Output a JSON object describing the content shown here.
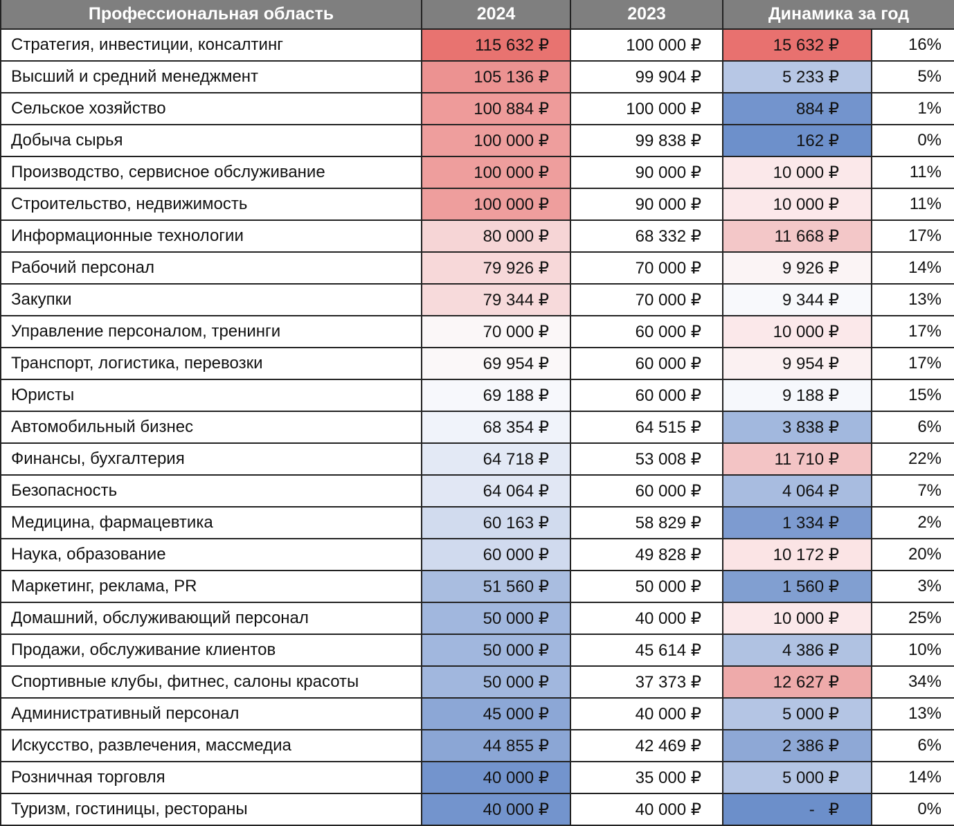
{
  "table": {
    "header": [
      "Профессиональная область",
      "2024",
      "2023",
      "Динамика за год"
    ],
    "rows": [
      [
        "Стратегия, инвестиции, консалтинг",
        "115 632 ₽",
        "100 000 ₽",
        "15 632 ₽",
        "16%"
      ],
      [
        "Высший и средний менеджмент",
        "105 136 ₽",
        "99 904 ₽",
        "5 233 ₽",
        "5%"
      ],
      [
        "Сельское хозяйство",
        "100 884 ₽",
        "100 000 ₽",
        "884 ₽",
        "1%"
      ],
      [
        "Добыча сырья",
        "100 000 ₽",
        "99 838 ₽",
        "162 ₽",
        "0%"
      ],
      [
        "Производство, сервисное обслуживание",
        "100 000 ₽",
        "90 000 ₽",
        "10 000 ₽",
        "11%"
      ],
      [
        "Строительство, недвижимость",
        "100 000 ₽",
        "90 000 ₽",
        "10 000 ₽",
        "11%"
      ],
      [
        "Информационные технологии",
        "80 000 ₽",
        "68 332 ₽",
        "11 668 ₽",
        "17%"
      ],
      [
        "Рабочий персонал",
        "79 926 ₽",
        "70 000 ₽",
        "9 926 ₽",
        "14%"
      ],
      [
        "Закупки",
        "79 344 ₽",
        "70 000 ₽",
        "9 344 ₽",
        "13%"
      ],
      [
        "Управление персоналом, тренинги",
        "70 000 ₽",
        "60 000 ₽",
        "10 000 ₽",
        "17%"
      ],
      [
        "Транспорт, логистика, перевозки",
        "69 954 ₽",
        "60 000 ₽",
        "9 954 ₽",
        "17%"
      ],
      [
        "Юристы",
        "69 188 ₽",
        "60 000 ₽",
        "9 188 ₽",
        "15%"
      ],
      [
        "Автомобильный бизнес",
        "68 354 ₽",
        "64 515 ₽",
        "3 838 ₽",
        "6%"
      ],
      [
        "Финансы, бухгалтерия",
        "64 718 ₽",
        "53 008 ₽",
        "11 710 ₽",
        "22%"
      ],
      [
        "Безопасность",
        "64 064 ₽",
        "60 000 ₽",
        "4 064 ₽",
        "7%"
      ],
      [
        "Медицина, фармацевтика",
        "60 163 ₽",
        "58 829 ₽",
        "1 334 ₽",
        "2%"
      ],
      [
        "Наука, образование",
        "60 000 ₽",
        "49 828 ₽",
        "10 172 ₽",
        "20%"
      ],
      [
        "Маркетинг, реклама, PR",
        "51 560 ₽",
        "50 000 ₽",
        "1 560 ₽",
        "3%"
      ],
      [
        "Домашний, обслуживающий персонал",
        "50 000 ₽",
        "40 000 ₽",
        "10 000 ₽",
        "25%"
      ],
      [
        "Продажи, обслуживание клиентов",
        "50 000 ₽",
        "45 614 ₽",
        "4 386 ₽",
        "10%"
      ],
      [
        "Спортивные клубы, фитнес, салоны красоты",
        "50 000 ₽",
        "37 373 ₽",
        "12 627 ₽",
        "34%"
      ],
      [
        "Административный персонал",
        "45 000 ₽",
        "40 000 ₽",
        "5 000 ₽",
        "13%"
      ],
      [
        "Искусство, развлечения, массмедиа",
        "44 855 ₽",
        "42 469 ₽",
        "2 386 ₽",
        "6%"
      ],
      [
        "Розничная торговля",
        "40 000 ₽",
        "35 000 ₽",
        "5 000 ₽",
        "14%"
      ],
      [
        "Туризм, гостиницы, рестораны",
        "40 000 ₽",
        "40 000 ₽",
        "-   ₽",
        "0%"
      ]
    ],
    "colors": [
      [
        "#e87370",
        "#e8716f"
      ],
      [
        "#ec9291",
        "#b7c7e5"
      ],
      [
        "#ee9b9a",
        "#7394cd"
      ],
      [
        "#ee9e9d",
        "#6d90cb"
      ],
      [
        "#ee9e9d",
        "#fbe8ea"
      ],
      [
        "#ee9e9d",
        "#fbe8ea"
      ],
      [
        "#f6d5d6",
        "#f3c7c8"
      ],
      [
        "#f7d8d9",
        "#fbf4f5"
      ],
      [
        "#f7dadb",
        "#f8f9fc"
      ],
      [
        "#fbf7f8",
        "#fbe8ea"
      ],
      [
        "#fbf8f9",
        "#fbf1f2"
      ],
      [
        "#f7f8fc",
        "#f6f8fc"
      ],
      [
        "#f0f3fa",
        "#a2b8de"
      ],
      [
        "#e3e9f5",
        "#f3c4c5"
      ],
      [
        "#e1e7f4",
        "#a8bce0"
      ],
      [
        "#d1dbee",
        "#7d9bd0"
      ],
      [
        "#d0daee",
        "#fbe4e5"
      ],
      [
        "#a9bde0",
        "#819fd1"
      ],
      [
        "#a1b7de",
        "#fbe8ea"
      ],
      [
        "#a1b7de",
        "#b0c2e2"
      ],
      [
        "#a1b7de",
        "#eeaaaa"
      ],
      [
        "#8ca7d6",
        "#b4c5e4"
      ],
      [
        "#8ba6d5",
        "#8ea8d6"
      ],
      [
        "#7394cd",
        "#b4c5e4"
      ],
      [
        "#7394cd",
        "#6c8fca"
      ]
    ]
  }
}
